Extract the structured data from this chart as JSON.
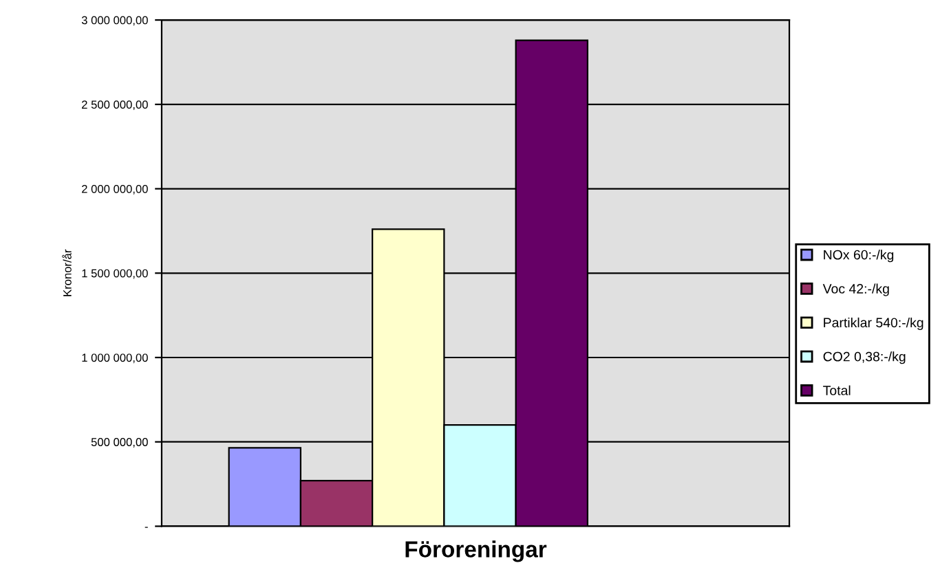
{
  "chart_data": {
    "type": "bar",
    "xlabel": "Föroreningar",
    "ylabel": "Kronor/år",
    "categories": [
      null
    ],
    "series": [
      {
        "name": "NOx 60:-/kg",
        "color": "#9999ff",
        "values": [
          465000
        ]
      },
      {
        "name": "Voc 42:-/kg",
        "color": "#993366",
        "values": [
          270000
        ]
      },
      {
        "name": "Partiklar 540:-/kg",
        "color": "#ffffcc",
        "values": [
          1760000
        ]
      },
      {
        "name": "CO2 0,38:-/kg",
        "color": "#ccffff",
        "values": [
          600000
        ]
      },
      {
        "name": "Total",
        "color": "#660066",
        "values": [
          2880000
        ]
      }
    ],
    "ylim": [
      0,
      3000000
    ],
    "yticks": [
      {
        "value": 0,
        "label": "-"
      },
      {
        "value": 500000,
        "label": "500 000,00"
      },
      {
        "value": 1000000,
        "label": "1 000 000,00"
      },
      {
        "value": 1500000,
        "label": "1 500 000,00"
      },
      {
        "value": 2000000,
        "label": "2 000 000,00"
      },
      {
        "value": 2500000,
        "label": "2 500 000,00"
      },
      {
        "value": 3000000,
        "label": "3 000 000,00"
      }
    ],
    "grid": "y",
    "legend": "right"
  }
}
